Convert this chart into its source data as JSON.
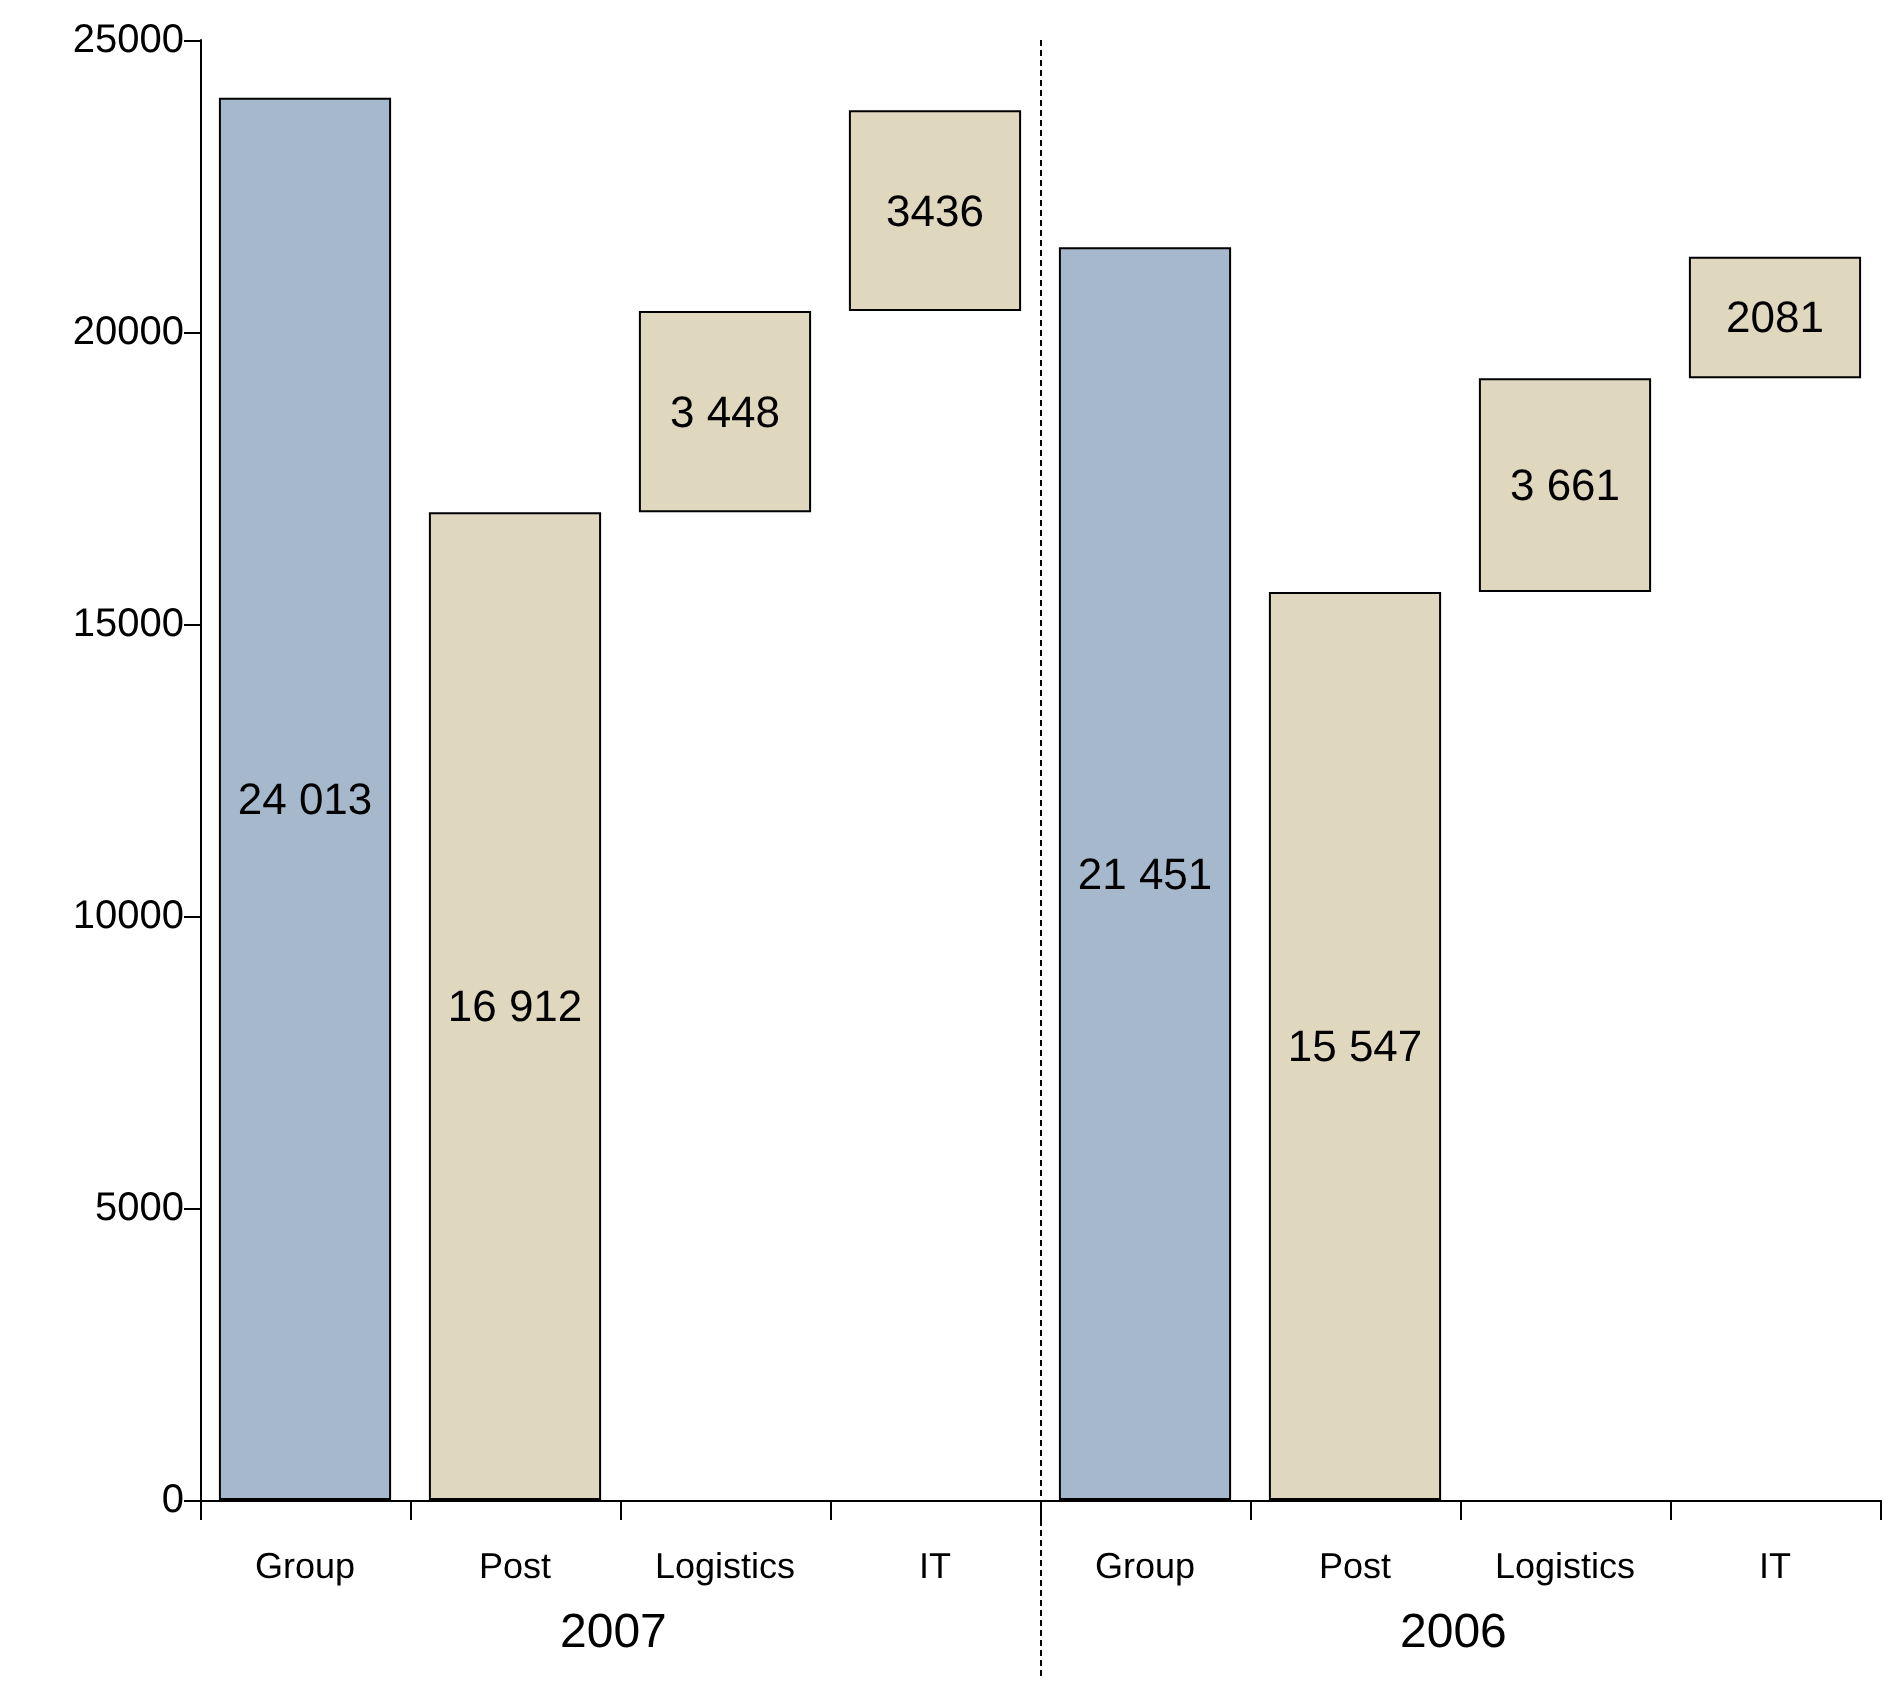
{
  "chart_data": {
    "type": "bar",
    "categories": [
      "Group",
      "Post",
      "Logistics",
      "IT",
      "Group",
      "Post",
      "Logistics",
      "IT"
    ],
    "values": [
      24013,
      16912,
      3448,
      3436,
      21451,
      15547,
      3661,
      2081
    ],
    "base": [
      0,
      0,
      16912,
      20360,
      0,
      0,
      15547,
      19208
    ],
    "colors": [
      "#a5b8cc",
      "#e0d7bf",
      "#e0d7bf",
      "#e0d7bf",
      "#a5b8cc",
      "#e0d7bf",
      "#e0d7bf",
      "#e0d7bf"
    ],
    "value_labels": [
      "24 013",
      "16 912",
      "3 448",
      "3436",
      "21 451",
      "15 547",
      "3 661",
      "2081"
    ],
    "ylim": [
      0,
      25000
    ],
    "yticks": [
      0,
      5000,
      10000,
      15000,
      20000,
      25000
    ],
    "annotations": [
      "2007",
      "2006"
    ]
  }
}
